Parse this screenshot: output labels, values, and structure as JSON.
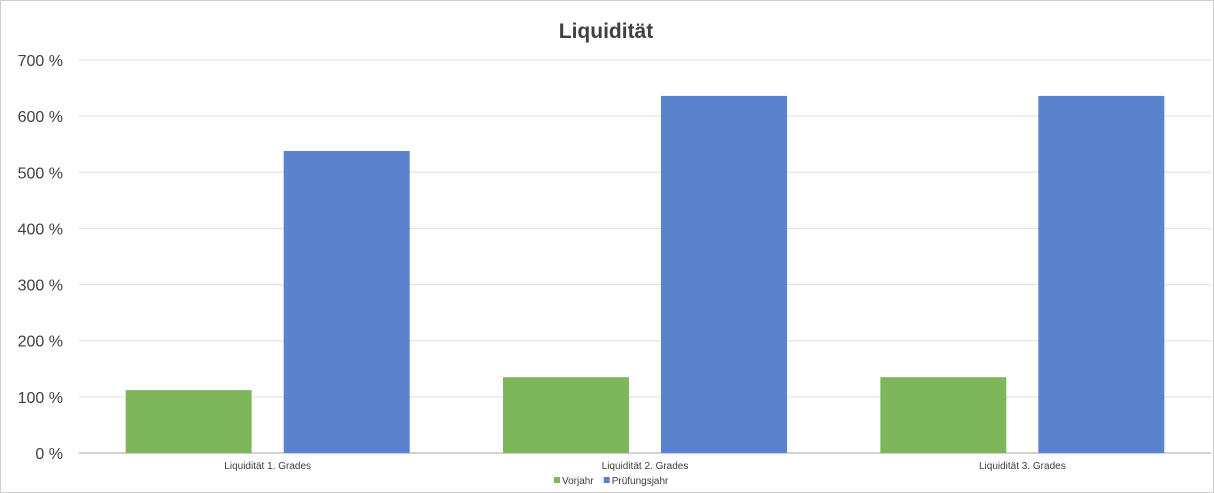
{
  "chart_data": {
    "type": "bar",
    "title": "Liquidität",
    "categories": [
      "Liquidität 1. Grades",
      "Liquidität 2. Grades",
      "Liquidität 3. Grades"
    ],
    "series": [
      {
        "name": "Vorjahr",
        "color": "#7db65b",
        "values": [
          112,
          135,
          135
        ]
      },
      {
        "name": "Prüfungsjahr",
        "color": "#5b83cd",
        "values": [
          538,
          636,
          636
        ]
      }
    ],
    "ylim": [
      0,
      700
    ],
    "yticks": [
      0,
      100,
      200,
      300,
      400,
      500,
      600,
      700
    ],
    "ytick_labels": [
      "0 %",
      "100 %",
      "200 %",
      "300 %",
      "400 %",
      "500 %",
      "600 %",
      "700 %"
    ],
    "grid": true,
    "legend": "bottom-center"
  }
}
